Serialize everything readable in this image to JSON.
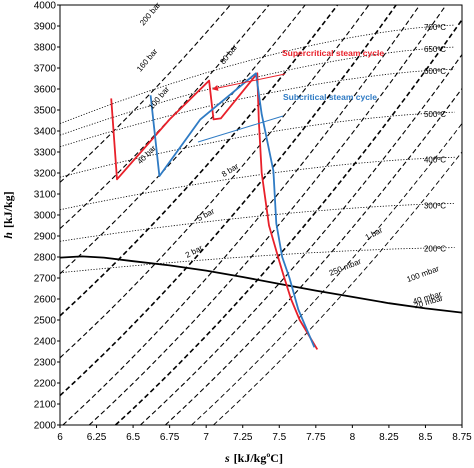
{
  "chart_data": {
    "type": "line",
    "xlabel_var": "s",
    "xlabel_unit": "[kJ/kgºC]",
    "ylabel_var": "h",
    "ylabel_unit": "[kJ/kg]",
    "xlim": [
      6,
      8.75
    ],
    "ylim": [
      2000,
      4000
    ],
    "xticks": [
      "6",
      "6.25",
      "6.5",
      "6.75",
      "7",
      "7.25",
      "7.5",
      "7.75",
      "8",
      "8.25",
      "8.5",
      "8.75"
    ],
    "yticks": [
      "2000",
      "2100",
      "2200",
      "2300",
      "2400",
      "2500",
      "2600",
      "2700",
      "2800",
      "2900",
      "3000",
      "3100",
      "3200",
      "3300",
      "3400",
      "3500",
      "3600",
      "3700",
      "3800",
      "3900",
      "4000"
    ],
    "colors": {
      "supercritical": "#e8202a",
      "subcritical": "#2f7bc4",
      "isobar": "#000000",
      "isotherm": "#000000",
      "saturation": "#000000"
    },
    "series": [
      {
        "name": "Supercritical steam cycle",
        "color": "#e8202a",
        "x": [
          6.35,
          6.39,
          6.75,
          7.02,
          7.05,
          7.1,
          7.35,
          7.36,
          7.38,
          7.43,
          7.5,
          7.53,
          7.58,
          7.64,
          7.76
        ],
        "y": [
          3555,
          3170,
          3455,
          3640,
          3455,
          3460,
          3675,
          3450,
          3200,
          2950,
          2780,
          2710,
          2600,
          2500,
          2360
        ]
      },
      {
        "name": "Subcritical steam cycle",
        "color": "#2f7bc4",
        "x": [
          6.62,
          6.68,
          6.96,
          7.34,
          7.38,
          7.46,
          7.48,
          7.52,
          7.57,
          7.63,
          7.74
        ],
        "y": [
          3570,
          3185,
          3455,
          3675,
          3480,
          3210,
          2960,
          2800,
          2700,
          2550,
          2370
        ]
      }
    ],
    "saturation_curve": {
      "x": [
        6.0,
        6.15,
        6.3,
        6.5,
        6.75,
        7.0,
        7.25,
        7.5,
        7.75,
        8.0,
        8.25,
        8.5,
        8.75
      ],
      "y": [
        2797,
        2803,
        2797,
        2780,
        2760,
        2735,
        2705,
        2672,
        2640,
        2610,
        2580,
        2555,
        2535
      ]
    },
    "isobar_labels": [
      "200 bar",
      "160 bar",
      "80 bar",
      "100 bar",
      "40 bar",
      "8 bar",
      "5 bar",
      "2 bar",
      "1 bar",
      "250 mbar",
      "100 mbar",
      "40 mbar",
      "20 mbar"
    ],
    "isotherm_labels": [
      "700ºC",
      "650ºC",
      "600ºC",
      "500ºC",
      "400ºC",
      "300ºC",
      "200ºC"
    ],
    "annotations": [
      "Supercritical steam cycle",
      "Subcritical steam cycle"
    ]
  }
}
